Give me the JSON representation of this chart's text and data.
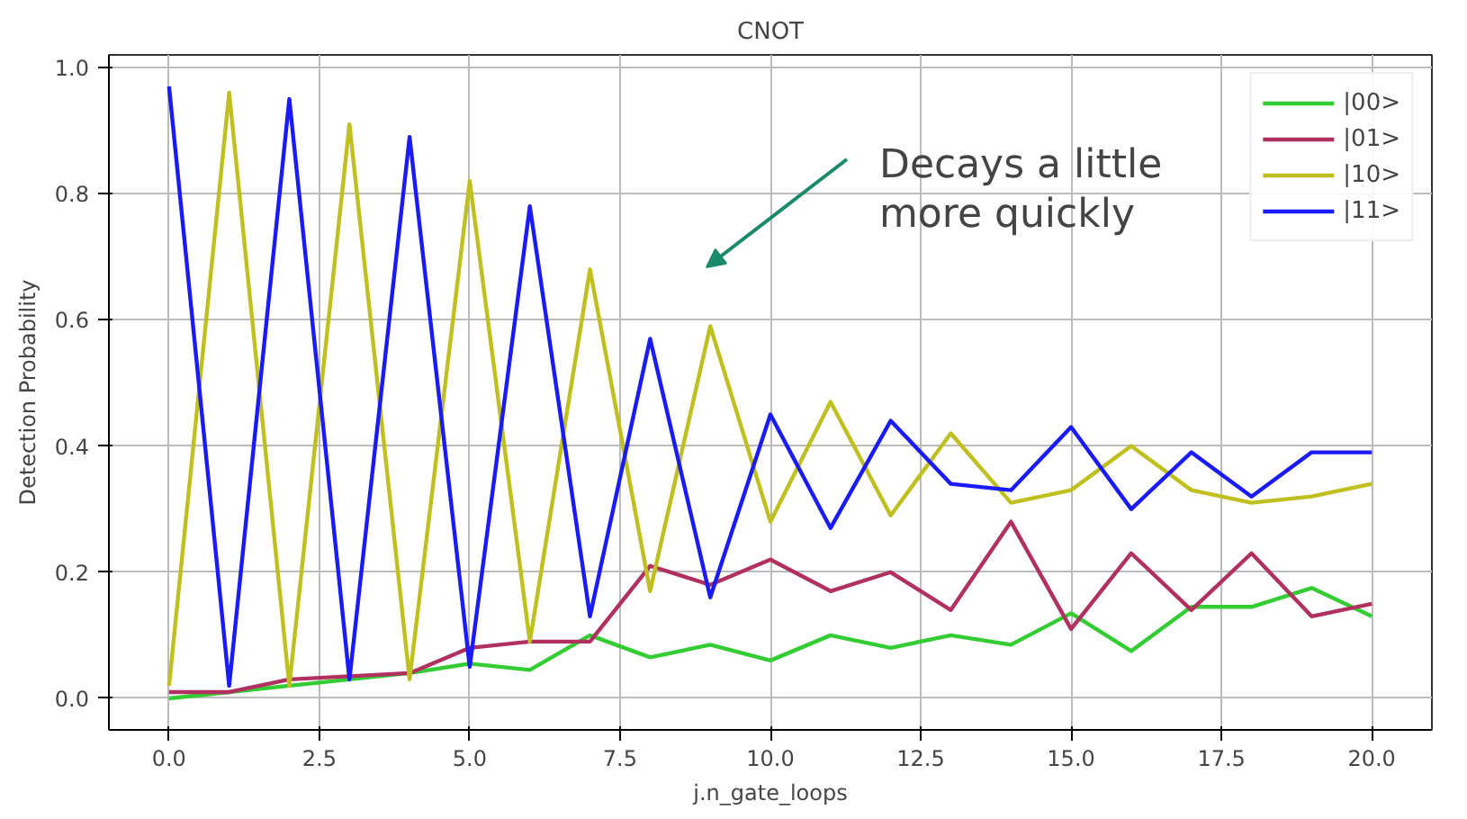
{
  "chart_data": {
    "type": "line",
    "title": "CNOT",
    "xlabel": "j.n_gate_loops",
    "ylabel": "Detection Probability",
    "x": [
      0,
      1,
      2,
      3,
      4,
      5,
      6,
      7,
      8,
      9,
      10,
      11,
      12,
      13,
      14,
      15,
      16,
      17,
      18,
      19,
      20
    ],
    "series": [
      {
        "name": "|00>",
        "color": "#33cc33",
        "values": [
          0.0,
          0.01,
          0.02,
          0.03,
          0.04,
          0.055,
          0.045,
          0.1,
          0.065,
          0.085,
          0.06,
          0.1,
          0.08,
          0.1,
          0.085,
          0.135,
          0.075,
          0.145,
          0.145,
          0.175,
          0.13
        ]
      },
      {
        "name": "|01>",
        "color": "#b03060",
        "values": [
          0.01,
          0.01,
          0.03,
          0.035,
          0.04,
          0.08,
          0.09,
          0.09,
          0.21,
          0.18,
          0.22,
          0.17,
          0.2,
          0.14,
          0.28,
          0.11,
          0.23,
          0.14,
          0.23,
          0.13,
          0.15
        ]
      },
      {
        "name": "|10>",
        "color": "#bfbf1f",
        "values": [
          0.02,
          0.96,
          0.02,
          0.91,
          0.03,
          0.82,
          0.09,
          0.68,
          0.17,
          0.59,
          0.28,
          0.47,
          0.29,
          0.42,
          0.31,
          0.33,
          0.4,
          0.33,
          0.31,
          0.32,
          0.34
        ]
      },
      {
        "name": "|11>",
        "color": "#1a1aff",
        "values": [
          0.97,
          0.02,
          0.95,
          0.03,
          0.89,
          0.05,
          0.78,
          0.13,
          0.57,
          0.16,
          0.45,
          0.27,
          0.44,
          0.34,
          0.33,
          0.43,
          0.3,
          0.39,
          0.32,
          0.39,
          0.39
        ]
      }
    ],
    "xlim": [
      -1,
      21
    ],
    "ylim": [
      -0.05,
      1.02
    ],
    "xticks": [
      {
        "value": 0,
        "label": "0.0"
      },
      {
        "value": 2.5,
        "label": "2.5"
      },
      {
        "value": 5,
        "label": "5.0"
      },
      {
        "value": 7.5,
        "label": "7.5"
      },
      {
        "value": 10,
        "label": "10.0"
      },
      {
        "value": 12.5,
        "label": "12.5"
      },
      {
        "value": 15,
        "label": "15.0"
      },
      {
        "value": 17.5,
        "label": "17.5"
      },
      {
        "value": 20,
        "label": "20.0"
      }
    ],
    "yticks": [
      {
        "value": 0,
        "label": "0.0"
      },
      {
        "value": 0.2,
        "label": "0.2"
      },
      {
        "value": 0.4,
        "label": "0.4"
      },
      {
        "value": 0.6,
        "label": "0.6"
      },
      {
        "value": 0.8,
        "label": "0.8"
      },
      {
        "value": 1,
        "label": "1.0"
      }
    ],
    "annotations": [
      "Decays a little more quickly"
    ],
    "grid": true,
    "legend": "top right",
    "marker": "none",
    "line_style": "solid"
  }
}
